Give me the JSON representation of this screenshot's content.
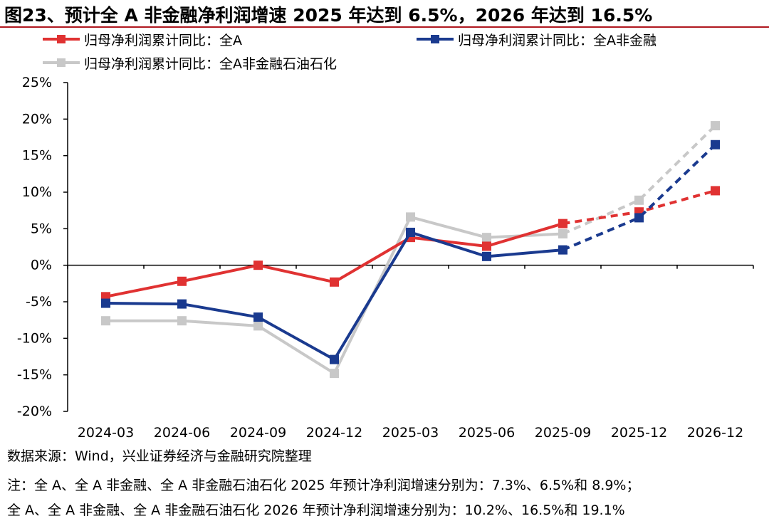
{
  "title": "图23、预计全 A 非金融净利润增速 2025 年达到 6.5%，2026 年达到 16.5%",
  "colors": {
    "all_a": "#e03232",
    "non_fin": "#1a3a8f",
    "non_fin_ex_pe": "#c8c8c8"
  },
  "chart_data": {
    "type": "line",
    "title": "图23、预计全 A 非金融净利润增速 2025 年达到 6.5%，2026 年达到 16.5%",
    "categories": [
      "2024-03",
      "2024-06",
      "2024-09",
      "2024-12",
      "2025-03",
      "2025-06",
      "2025-09",
      "2025-12",
      "2026-12"
    ],
    "y_ticks": [
      "25%",
      "20%",
      "15%",
      "10%",
      "5%",
      "0%",
      "-5%",
      "-10%",
      "-15%",
      "-20%"
    ],
    "ylim": [
      -20,
      25
    ],
    "y_unit": "%",
    "grid": false,
    "legend_position": "top",
    "forecast_from": "2025-09",
    "series": [
      {
        "name": "归母净利润累计同比：全A",
        "values": [
          -4.3,
          -2.2,
          0.0,
          -2.3,
          3.8,
          2.6,
          5.7,
          7.3,
          10.2
        ]
      },
      {
        "name": "归母净利润累计同比：全A非金融",
        "values": [
          -5.2,
          -5.3,
          -7.1,
          -12.9,
          4.5,
          1.2,
          2.1,
          6.5,
          16.5
        ]
      },
      {
        "name": "归母净利润累计同比：全A非金融石油石化",
        "values": [
          -7.6,
          -7.6,
          -8.3,
          -14.8,
          6.6,
          3.8,
          4.3,
          8.9,
          19.1
        ]
      }
    ]
  },
  "footer": {
    "source": "数据来源：Wind，兴业证券经济与金融研究院整理",
    "note1": "注：全 A、全 A 非金融、全 A 非金融石油石化  2025 年预计净利润增速分别为：7.3%、6.5%和 8.9%；",
    "note2": "全 A、全 A 非金融、全 A 非金融石油石化  2026 年预计净利润增速分别为：10.2%、16.5%和 19.1%"
  }
}
